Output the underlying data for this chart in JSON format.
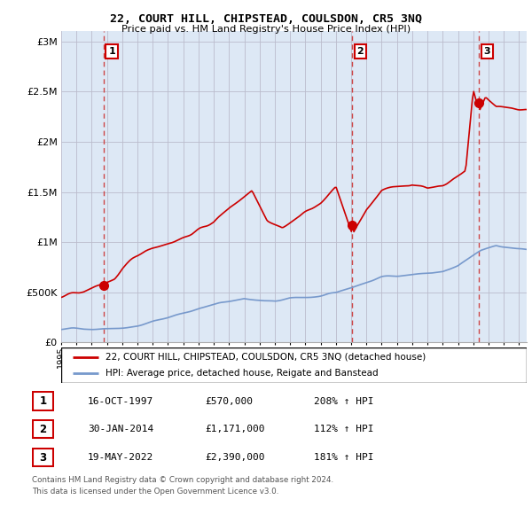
{
  "title": "22, COURT HILL, CHIPSTEAD, COULSDON, CR5 3NQ",
  "subtitle": "Price paid vs. HM Land Registry's House Price Index (HPI)",
  "ylabel_ticks": [
    "£0",
    "£500K",
    "£1M",
    "£1.5M",
    "£2M",
    "£2.5M",
    "£3M"
  ],
  "ytick_values": [
    0,
    500000,
    1000000,
    1500000,
    2000000,
    2500000,
    3000000
  ],
  "ylim": [
    0,
    3100000
  ],
  "sale_dates": [
    1997.79,
    2014.08,
    2022.38
  ],
  "sale_prices": [
    570000,
    1171000,
    2390000
  ],
  "sale_labels": [
    "1",
    "2",
    "3"
  ],
  "red_line_color": "#cc0000",
  "blue_line_color": "#7799cc",
  "dashed_line_color": "#cc3333",
  "chart_bg_color": "#dde8f5",
  "background_color": "#ffffff",
  "grid_color": "#bbbbcc",
  "legend_items": [
    "22, COURT HILL, CHIPSTEAD, COULSDON, CR5 3NQ (detached house)",
    "HPI: Average price, detached house, Reigate and Banstead"
  ],
  "table_rows": [
    [
      "1",
      "16-OCT-1997",
      "£570,000",
      "208% ↑ HPI"
    ],
    [
      "2",
      "30-JAN-2014",
      "£1,171,000",
      "112% ↑ HPI"
    ],
    [
      "3",
      "19-MAY-2022",
      "£2,390,000",
      "181% ↑ HPI"
    ]
  ],
  "footnote1": "Contains HM Land Registry data © Crown copyright and database right 2024.",
  "footnote2": "This data is licensed under the Open Government Licence v3.0.",
  "xmin": 1995.0,
  "xmax": 2025.5
}
